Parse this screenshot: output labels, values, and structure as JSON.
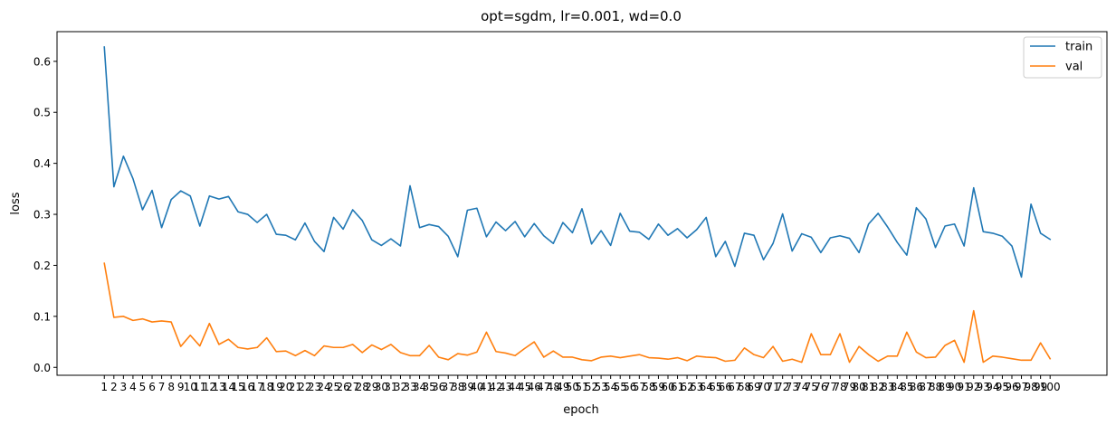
{
  "chart_data": {
    "type": "line",
    "title": "opt=sgdm, lr=0.001, wd=0.0",
    "xlabel": "epoch",
    "ylabel": "loss",
    "x": [
      1,
      2,
      3,
      4,
      5,
      6,
      7,
      8,
      9,
      10,
      11,
      12,
      13,
      14,
      15,
      16,
      17,
      18,
      19,
      20,
      21,
      22,
      23,
      24,
      25,
      26,
      27,
      28,
      29,
      30,
      31,
      32,
      33,
      34,
      35,
      36,
      37,
      38,
      39,
      40,
      41,
      42,
      43,
      44,
      45,
      46,
      47,
      48,
      49,
      50,
      51,
      52,
      53,
      54,
      55,
      56,
      57,
      58,
      59,
      60,
      61,
      62,
      63,
      64,
      65,
      66,
      67,
      68,
      69,
      70,
      71,
      72,
      73,
      74,
      75,
      76,
      77,
      78,
      79,
      80,
      81,
      82,
      83,
      84,
      85,
      86,
      87,
      88,
      89,
      90,
      91,
      92,
      93,
      94,
      95,
      96,
      97,
      98,
      99,
      100
    ],
    "xticks": [
      "1",
      "2",
      "3",
      "4",
      "5",
      "6",
      "7",
      "8",
      "9",
      "10",
      "11",
      "12",
      "13",
      "14",
      "15",
      "16",
      "17",
      "18",
      "19",
      "20",
      "21",
      "22",
      "23",
      "24",
      "25",
      "26",
      "27",
      "28",
      "29",
      "30",
      "31",
      "32",
      "33",
      "34",
      "35",
      "36",
      "37",
      "38",
      "39",
      "40",
      "41",
      "42",
      "43",
      "44",
      "45",
      "46",
      "47",
      "48",
      "49",
      "50",
      "51",
      "52",
      "53",
      "54",
      "55",
      "56",
      "57",
      "58",
      "59",
      "60",
      "61",
      "62",
      "63",
      "64",
      "65",
      "66",
      "67",
      "68",
      "69",
      "70",
      "71",
      "72",
      "73",
      "74",
      "75",
      "76",
      "77",
      "78",
      "79",
      "80",
      "81",
      "82",
      "83",
      "84",
      "85",
      "86",
      "87",
      "88",
      "89",
      "90",
      "91",
      "92",
      "93",
      "94",
      "95",
      "96",
      "97",
      "98",
      "99",
      "100"
    ],
    "yticks": [
      {
        "value": 0.0,
        "label": "0.0"
      },
      {
        "value": 0.1,
        "label": "0.1"
      },
      {
        "value": 0.2,
        "label": "0.2"
      },
      {
        "value": 0.3,
        "label": "0.3"
      },
      {
        "value": 0.4,
        "label": "0.4"
      },
      {
        "value": 0.5,
        "label": "0.5"
      },
      {
        "value": 0.6,
        "label": "0.6"
      }
    ],
    "xlim": [
      -3.95,
      105.95
    ],
    "ylim": [
      -0.0155,
      0.6582
    ],
    "grid": false,
    "legend_position": "top-right",
    "series": [
      {
        "name": "train",
        "color": "#1f77b4",
        "values": [
          0.628,
          0.354,
          0.414,
          0.37,
          0.309,
          0.347,
          0.274,
          0.329,
          0.346,
          0.336,
          0.277,
          0.336,
          0.33,
          0.335,
          0.305,
          0.3,
          0.284,
          0.3,
          0.261,
          0.259,
          0.25,
          0.283,
          0.247,
          0.227,
          0.294,
          0.271,
          0.309,
          0.288,
          0.25,
          0.239,
          0.252,
          0.238,
          0.356,
          0.274,
          0.28,
          0.276,
          0.257,
          0.217,
          0.308,
          0.312,
          0.256,
          0.285,
          0.268,
          0.286,
          0.256,
          0.282,
          0.258,
          0.243,
          0.284,
          0.264,
          0.311,
          0.242,
          0.268,
          0.239,
          0.302,
          0.267,
          0.265,
          0.251,
          0.281,
          0.259,
          0.272,
          0.254,
          0.27,
          0.294,
          0.217,
          0.247,
          0.198,
          0.263,
          0.259,
          0.211,
          0.243,
          0.301,
          0.228,
          0.262,
          0.255,
          0.225,
          0.254,
          0.258,
          0.253,
          0.225,
          0.281,
          0.302,
          0.275,
          0.245,
          0.22,
          0.313,
          0.291,
          0.235,
          0.277,
          0.281,
          0.238,
          0.352,
          0.266,
          0.263,
          0.257,
          0.238,
          0.177,
          0.32,
          0.263,
          0.251
        ]
      },
      {
        "name": "val",
        "color": "#ff7f0e",
        "values": [
          0.204,
          0.098,
          0.1,
          0.092,
          0.095,
          0.089,
          0.091,
          0.089,
          0.041,
          0.063,
          0.042,
          0.086,
          0.045,
          0.055,
          0.039,
          0.036,
          0.039,
          0.058,
          0.031,
          0.032,
          0.023,
          0.033,
          0.023,
          0.042,
          0.039,
          0.039,
          0.045,
          0.029,
          0.044,
          0.035,
          0.045,
          0.029,
          0.023,
          0.023,
          0.043,
          0.02,
          0.015,
          0.027,
          0.024,
          0.03,
          0.069,
          0.031,
          0.028,
          0.023,
          0.037,
          0.05,
          0.02,
          0.032,
          0.02,
          0.02,
          0.015,
          0.013,
          0.02,
          0.022,
          0.019,
          0.022,
          0.025,
          0.019,
          0.018,
          0.016,
          0.019,
          0.013,
          0.022,
          0.02,
          0.019,
          0.012,
          0.014,
          0.038,
          0.025,
          0.019,
          0.041,
          0.012,
          0.016,
          0.01,
          0.066,
          0.025,
          0.025,
          0.066,
          0.01,
          0.041,
          0.025,
          0.012,
          0.022,
          0.022,
          0.069,
          0.03,
          0.019,
          0.02,
          0.043,
          0.053,
          0.01,
          0.111,
          0.01,
          0.022,
          0.02,
          0.017,
          0.014,
          0.014,
          0.048,
          0.017
        ]
      }
    ]
  }
}
